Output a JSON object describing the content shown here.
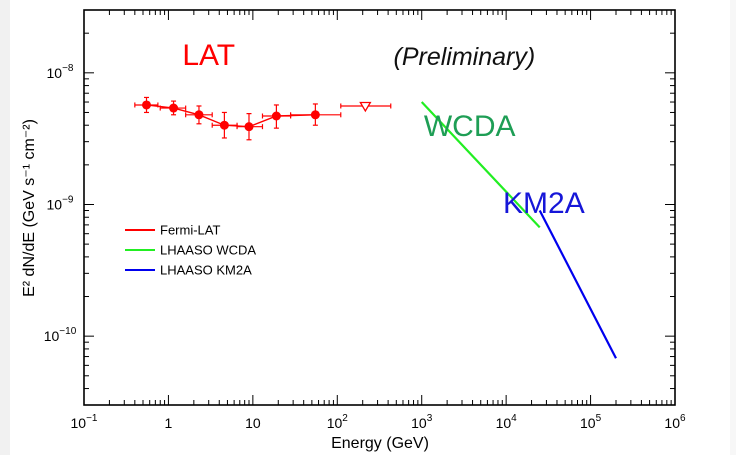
{
  "chart_data": {
    "type": "scatter",
    "xscale": "log",
    "yscale": "log",
    "xlim": [
      0.1,
      1000000
    ],
    "ylim": [
      3e-11,
      3e-08
    ],
    "xlabel": "Energy (GeV)",
    "ylabel": "E² dN/dE (GeV s⁻¹ cm⁻²)",
    "x_ticks": [
      {
        "value": 0.1,
        "label": "10",
        "sup": "−1"
      },
      {
        "value": 1,
        "label": "1",
        "sup": ""
      },
      {
        "value": 10,
        "label": "10",
        "sup": ""
      },
      {
        "value": 100,
        "label": "10",
        "sup": "2"
      },
      {
        "value": 1000,
        "label": "10",
        "sup": "3"
      },
      {
        "value": 10000,
        "label": "10",
        "sup": "4"
      },
      {
        "value": 100000,
        "label": "10",
        "sup": "5"
      },
      {
        "value": 1000000,
        "label": "10",
        "sup": "6"
      }
    ],
    "y_ticks": [
      {
        "value": 1e-10,
        "label": "10",
        "sup": "−10"
      },
      {
        "value": 1e-09,
        "label": "10",
        "sup": "−9"
      },
      {
        "value": 1e-08,
        "label": "10",
        "sup": "−8"
      }
    ],
    "annotations": [
      {
        "text": "LAT",
        "x": 3.0,
        "y": 1.15e-08,
        "color": "#ff0000",
        "italic": false,
        "size": 30
      },
      {
        "text": "(Preliminary)",
        "x": 3200,
        "y": 1.15e-08,
        "color": "#111111",
        "italic": true,
        "size": 25
      },
      {
        "text": "WCDA",
        "x": 3700,
        "y": 3.3e-09,
        "color": "#1e9e55",
        "italic": false,
        "size": 30
      },
      {
        "text": "KM2A",
        "x": 28000,
        "y": 8.6e-10,
        "color": "#1616d8",
        "italic": false,
        "size": 30
      }
    ],
    "legend": {
      "placement": "middle-left",
      "items": [
        {
          "label": "Fermi-LAT",
          "color": "#ff0000"
        },
        {
          "label": "LHAASO WCDA",
          "color": "#22ee22"
        },
        {
          "label": "LHAASO KM2A",
          "color": "#0000ee"
        }
      ]
    },
    "series": [
      {
        "name": "Fermi-LAT",
        "color": "#ff0000",
        "points": [
          {
            "x": 0.55,
            "y": 5.7e-09,
            "xlo": 0.4,
            "xhi": 0.75,
            "ylo": 5e-09,
            "yhi": 6.5e-09
          },
          {
            "x": 1.15,
            "y": 5.4e-09,
            "xlo": 0.8,
            "xhi": 1.6,
            "ylo": 4.8e-09,
            "yhi": 6.1e-09
          },
          {
            "x": 2.3,
            "y": 4.8e-09,
            "xlo": 1.6,
            "xhi": 3.3,
            "ylo": 4.1e-09,
            "yhi": 5.6e-09
          },
          {
            "x": 4.6,
            "y": 4e-09,
            "xlo": 3.3,
            "xhi": 6.5,
            "ylo": 3.2e-09,
            "yhi": 5e-09
          },
          {
            "x": 9.0,
            "y": 3.9e-09,
            "xlo": 6.5,
            "xhi": 13,
            "ylo": 3.1e-09,
            "yhi": 4.9e-09
          },
          {
            "x": 19,
            "y": 4.7e-09,
            "xlo": 13,
            "xhi": 28,
            "ylo": 3.8e-09,
            "yhi": 5.7e-09
          },
          {
            "x": 55,
            "y": 4.8e-09,
            "xlo": 28,
            "xhi": 110,
            "ylo": 4e-09,
            "yhi": 5.8e-09
          }
        ],
        "upper_limits": [
          {
            "x": 215,
            "y": 5.6e-09,
            "xlo": 110,
            "xhi": 430
          }
        ]
      },
      {
        "name": "LHAASO WCDA",
        "color": "#22ee22",
        "line": [
          [
            1000,
            6e-09
          ],
          [
            25000,
            6.7e-10
          ]
        ]
      },
      {
        "name": "LHAASO KM2A",
        "color": "#0000ee",
        "line": [
          [
            25000,
            9e-10
          ],
          [
            200000,
            6.8e-11
          ]
        ]
      }
    ]
  }
}
